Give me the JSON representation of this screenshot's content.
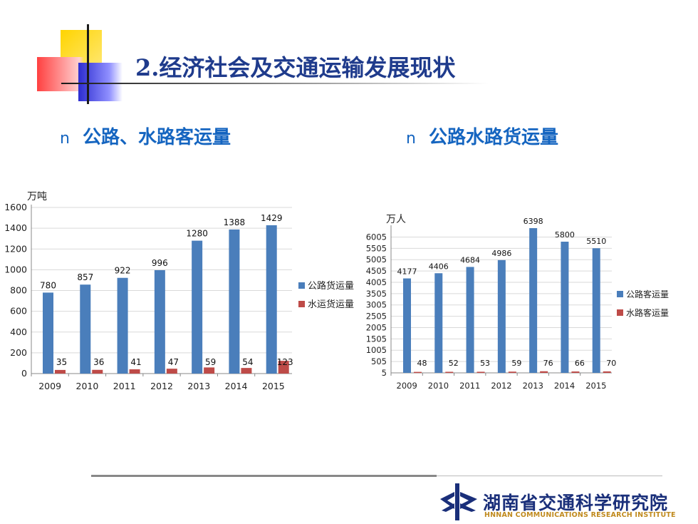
{
  "title": "2.经济社会及交通运输发展现状",
  "bullets": [
    {
      "marker": "n",
      "text": "公路、水路客运量"
    },
    {
      "marker": "n",
      "text": "公路水路货运量"
    }
  ],
  "chart_data": [
    {
      "type": "bar",
      "ylabel": "万吨",
      "categories": [
        "2009",
        "2010",
        "2011",
        "2012",
        "2013",
        "2014",
        "2015"
      ],
      "ylim": [
        0,
        1600
      ],
      "yticks": [
        0,
        200,
        400,
        600,
        800,
        1000,
        1200,
        1400,
        1600
      ],
      "grid": true,
      "legend": "right",
      "series": [
        {
          "name": "公路货运量",
          "color": "#4a7ebb",
          "values": [
            780,
            857,
            922,
            996,
            1280,
            1388,
            1429
          ]
        },
        {
          "name": "水运货运量",
          "color": "#be4b48",
          "values": [
            35,
            36,
            41,
            47,
            59,
            54,
            123
          ]
        }
      ]
    },
    {
      "type": "bar",
      "ylabel": "万人",
      "categories": [
        "2009",
        "2010",
        "2011",
        "2012",
        "2013",
        "2014",
        "2015"
      ],
      "ylim": [
        5,
        6398
      ],
      "yticks": [
        5,
        505,
        1005,
        1505,
        2005,
        2505,
        3005,
        3505,
        4005,
        4505,
        5005,
        5505,
        6005
      ],
      "grid": true,
      "legend": "right",
      "series": [
        {
          "name": "公路客运量",
          "color": "#4a7ebb",
          "values": [
            4177,
            4406,
            4684,
            4986,
            6398,
            5800,
            5510
          ]
        },
        {
          "name": "水路客运量",
          "color": "#be4b48",
          "values": [
            48,
            52,
            53,
            59,
            76,
            66,
            70
          ]
        }
      ]
    }
  ],
  "logo": {
    "name_cn": "湖南省交通科学研究院",
    "name_en": "HNNAN COMMUNICATIONS RESEARCH INSTITUTE"
  }
}
